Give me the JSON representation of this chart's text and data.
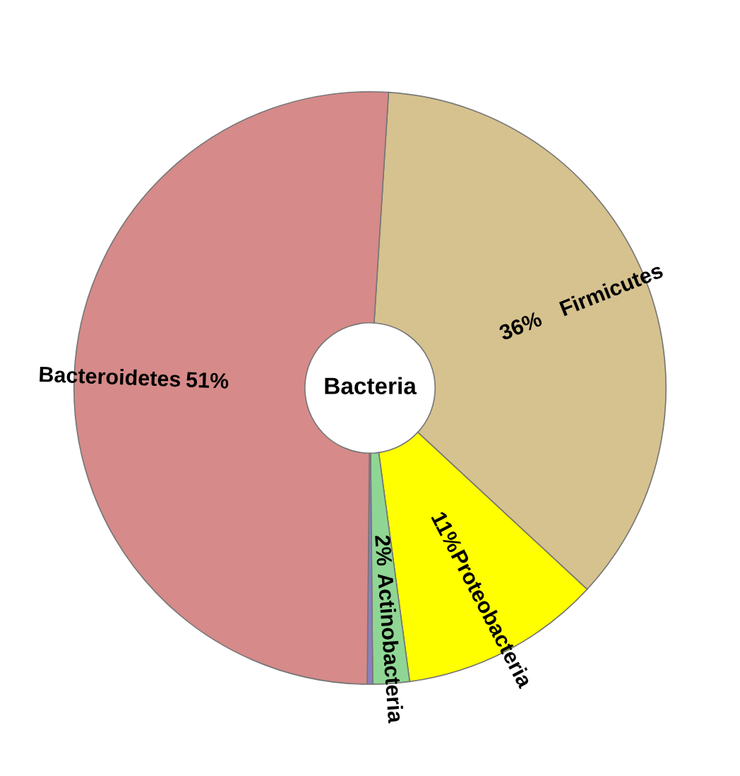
{
  "chart_data": {
    "type": "donut",
    "title": "Bacteria",
    "categories": [
      "Firmicutes",
      "Proteobacteria",
      "Actinobacteria",
      null,
      "Bacteroidetes"
    ],
    "values": [
      36,
      11,
      2,
      0.3,
      51
    ],
    "colors": [
      "#d6c28e",
      "#ffff00",
      "#8fd694",
      "#8a7fc0",
      "#d68a89"
    ],
    "value_labels": [
      "36%",
      "11%",
      "2%",
      null,
      "51%"
    ],
    "legend": false
  }
}
